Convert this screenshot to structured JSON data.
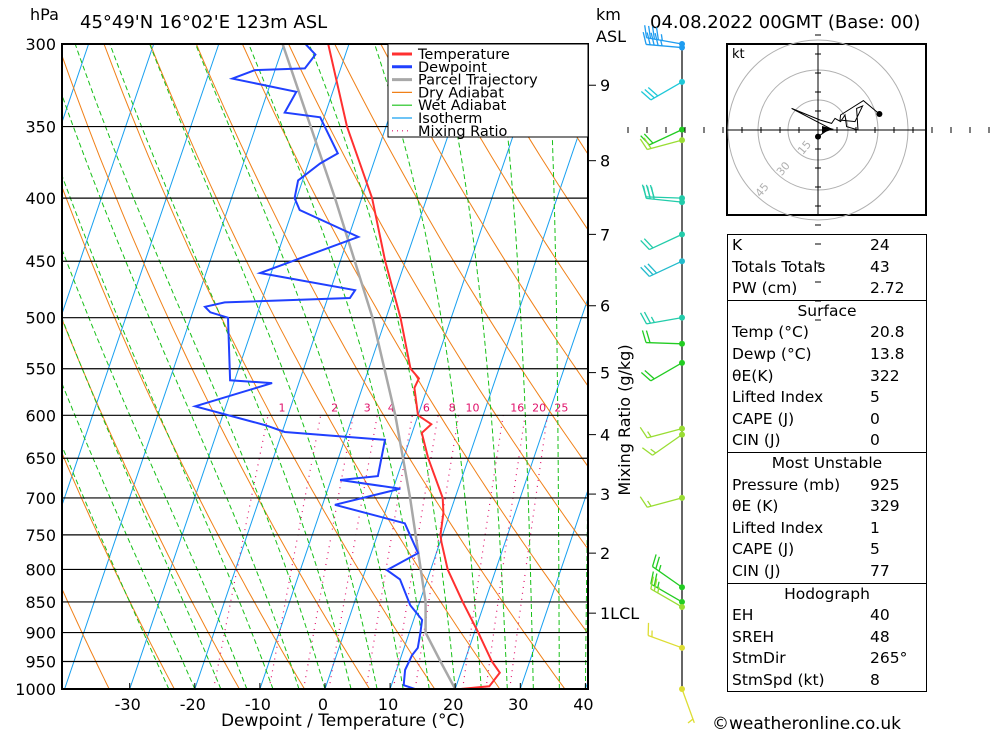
{
  "header": {
    "pressure_unit": "hPa",
    "location": "45°49'N 16°02'E 123m ASL",
    "height_unit_1": "km",
    "height_unit_2": "ASL",
    "datetime": "04.08.2022 00GMT (Base: 00)"
  },
  "footer": {
    "copyright": "©weatheronline.co.uk"
  },
  "chart_data": {
    "type": "skew-t",
    "xlabel": "Dewpoint / Temperature (°C)",
    "ylabel": "hPa",
    "right_label": "Mixing Ratio (g/kg)",
    "pressure_ticks": [
      300,
      350,
      400,
      450,
      500,
      550,
      600,
      650,
      700,
      750,
      800,
      850,
      900,
      950,
      1000
    ],
    "temperature_ticks": [
      -30,
      -20,
      -10,
      0,
      10,
      20,
      30,
      40
    ],
    "ylim_hpa": [
      1000,
      300
    ],
    "xlim_c_at_1000": [
      -40,
      40
    ],
    "legend": {
      "placement": "top-right",
      "items": [
        {
          "label": "Temperature",
          "color": "#ff3030",
          "style": "solid-thick"
        },
        {
          "label": "Dewpoint",
          "color": "#2040ff",
          "style": "solid-thick"
        },
        {
          "label": "Parcel Trajectory",
          "color": "#a8a8a8",
          "style": "solid-thick"
        },
        {
          "label": "Dry Adiabat",
          "color": "#f08018",
          "style": "solid"
        },
        {
          "label": "Wet Adiabat",
          "color": "#18c018",
          "style": "solid"
        },
        {
          "label": "Isotherm",
          "color": "#18a0f0",
          "style": "solid"
        },
        {
          "label": "Mixing Ratio",
          "color": "#e0106a",
          "style": "dotted"
        }
      ]
    },
    "height_scale_km": [
      {
        "label": "9",
        "p": 324
      },
      {
        "label": "8",
        "p": 373
      },
      {
        "label": "7",
        "p": 428
      },
      {
        "label": "6",
        "p": 489
      },
      {
        "label": "5",
        "p": 554
      },
      {
        "label": "4",
        "p": 622
      },
      {
        "label": "3",
        "p": 695
      },
      {
        "label": "2",
        "p": 776
      },
      {
        "label": "1LCL",
        "p": 868
      }
    ],
    "mixing_ratio_labels": [
      "1",
      "2",
      "3",
      "4",
      "6",
      "8",
      "10",
      "16",
      "20",
      "25"
    ],
    "mixing_ratio_values": [
      1,
      2,
      3,
      4,
      6,
      8,
      10,
      16,
      20,
      25
    ],
    "temperature": [
      [
        1000,
        20.8
      ],
      [
        995,
        25.1
      ],
      [
        970,
        26.0
      ],
      [
        950,
        24.2
      ],
      [
        900,
        20.6
      ],
      [
        850,
        16.6
      ],
      [
        800,
        12.6
      ],
      [
        760,
        10.2
      ],
      [
        750,
        9.7
      ],
      [
        720,
        9.0
      ],
      [
        700,
        8.1
      ],
      [
        650,
        3.8
      ],
      [
        620,
        1.5
      ],
      [
        610,
        2.5
      ],
      [
        600,
        0.0
      ],
      [
        570,
        -2.0
      ],
      [
        560,
        -1.8
      ],
      [
        550,
        -3.6
      ],
      [
        500,
        -7.8
      ],
      [
        450,
        -13.1
      ],
      [
        400,
        -18.4
      ],
      [
        350,
        -26.0
      ],
      [
        300,
        -33.2
      ]
    ],
    "dewpoint": [
      [
        1000,
        13.8
      ],
      [
        993,
        11.9
      ],
      [
        965,
        11.3
      ],
      [
        939,
        11.6
      ],
      [
        926,
        12.1
      ],
      [
        900,
        11.7
      ],
      [
        879,
        11.3
      ],
      [
        855,
        8.7
      ],
      [
        815,
        5.8
      ],
      [
        801,
        3.3
      ],
      [
        776,
        7.2
      ],
      [
        734,
        3.6
      ],
      [
        709,
        -8.1
      ],
      [
        688,
        1.1
      ],
      [
        677,
        -8.6
      ],
      [
        672,
        -3.0
      ],
      [
        628,
        -3.8
      ],
      [
        619,
        -19.6
      ],
      [
        611,
        -23.0
      ],
      [
        590,
        -34.7
      ],
      [
        565,
        -24.1
      ],
      [
        562,
        -30.7
      ],
      [
        500,
        -34.3
      ],
      [
        495,
        -37.3
      ],
      [
        490,
        -38.4
      ],
      [
        486,
        -35.6
      ],
      [
        482,
        -16.6
      ],
      [
        475,
        -16.2
      ],
      [
        460,
        -31.7
      ],
      [
        430,
        -18.5
      ],
      [
        409,
        -28.9
      ],
      [
        400,
        -30.3
      ],
      [
        387,
        -30.7
      ],
      [
        375,
        -28.2
      ],
      [
        368,
        -26.0
      ],
      [
        344,
        -30.6
      ],
      [
        341,
        -36.3
      ],
      [
        328,
        -35.6
      ],
      [
        320,
        -46.1
      ],
      [
        315,
        -43.1
      ],
      [
        314,
        -35.5
      ],
      [
        306,
        -34.6
      ],
      [
        300,
        -36.7
      ]
    ],
    "parcel": [
      [
        1000,
        20.0
      ],
      [
        950,
        16.3
      ],
      [
        900,
        12.5
      ],
      [
        850,
        10.9
      ],
      [
        700,
        3.1
      ],
      [
        600,
        -3.5
      ],
      [
        500,
        -12.1
      ],
      [
        400,
        -24.1
      ],
      [
        300,
        -40.2
      ]
    ],
    "winds": [
      {
        "p": 300,
        "dir": 280,
        "spd": 45,
        "color": "#1e9cf0"
      },
      {
        "p": 302,
        "dir": 275,
        "spd": 45,
        "color": "#1e9cf0"
      },
      {
        "p": 322,
        "dir": 240,
        "spd": 30,
        "color": "#1ec8d8"
      },
      {
        "p": 352,
        "dir": 245,
        "spd": 20,
        "color": "#22cc22"
      },
      {
        "p": 359,
        "dir": 255,
        "spd": 20,
        "color": "#99dd33"
      },
      {
        "p": 400,
        "dir": 272,
        "spd": 30,
        "color": "#22ccaa"
      },
      {
        "p": 403,
        "dir": 276,
        "spd": 30,
        "color": "#22ccaa"
      },
      {
        "p": 428,
        "dir": 245,
        "spd": 20,
        "color": "#22ccaa"
      },
      {
        "p": 450,
        "dir": 245,
        "spd": 30,
        "color": "#22bbcc"
      },
      {
        "p": 500,
        "dir": 260,
        "spd": 25,
        "color": "#22ccaa"
      },
      {
        "p": 525,
        "dir": 272,
        "spd": 20,
        "color": "#22cc22"
      },
      {
        "p": 544,
        "dir": 240,
        "spd": 20,
        "color": "#22cc22"
      },
      {
        "p": 615,
        "dir": 255,
        "spd": 15,
        "color": "#99dd33"
      },
      {
        "p": 622,
        "dir": 235,
        "spd": 15,
        "color": "#99dd33"
      },
      {
        "p": 700,
        "dir": 255,
        "spd": 15,
        "color": "#99dd33"
      },
      {
        "p": 827,
        "dir": 305,
        "spd": 25,
        "color": "#22cc22"
      },
      {
        "p": 850,
        "dir": 300,
        "spd": 25,
        "color": "#22cc22"
      },
      {
        "p": 858,
        "dir": 300,
        "spd": 25,
        "color": "#99dd33"
      },
      {
        "p": 926,
        "dir": 290,
        "spd": 15,
        "color": "#dddd33"
      },
      {
        "p": 1000,
        "dir": 160,
        "spd": 5,
        "color": "#dddd33"
      }
    ]
  },
  "hodograph": {
    "unit": "kt",
    "rings": [
      15,
      30,
      45
    ],
    "ring_labels": [
      "15",
      "30",
      "45"
    ],
    "uv_path": [
      [
        0,
        -3.3
      ],
      [
        6,
        0.8
      ],
      [
        -13.2,
        10.8
      ],
      [
        1,
        5
      ],
      [
        6.8,
        3.3
      ],
      [
        8.5,
        5.8
      ],
      [
        11.3,
        4.2
      ],
      [
        13.5,
        7.5
      ],
      [
        14.3,
        1.7
      ],
      [
        20,
        0
      ],
      [
        19.3,
        10.8
      ],
      [
        22.3,
        12
      ],
      [
        18.5,
        4.2
      ],
      [
        11,
        5
      ],
      [
        11.3,
        7.5
      ],
      [
        22.7,
        14.7
      ],
      [
        30.7,
        8
      ]
    ]
  },
  "indices": {
    "general": [
      {
        "label": "K",
        "value": "24"
      },
      {
        "label": "Totals Totals",
        "value": "43"
      },
      {
        "label": "PW (cm)",
        "value": "2.72"
      }
    ],
    "surface": {
      "title": "Surface",
      "rows": [
        {
          "label": "Temp (°C)",
          "value": "20.8"
        },
        {
          "label": "Dewp (°C)",
          "value": "13.8"
        },
        {
          "label": "θE(K)",
          "value": "322"
        },
        {
          "label": "Lifted Index",
          "value": "5"
        },
        {
          "label": "CAPE (J)",
          "value": "0"
        },
        {
          "label": "CIN (J)",
          "value": "0"
        }
      ]
    },
    "most_unstable": {
      "title": "Most Unstable",
      "rows": [
        {
          "label": "Pressure (mb)",
          "value": "925"
        },
        {
          "label": "θE (K)",
          "value": "329"
        },
        {
          "label": "Lifted Index",
          "value": "1"
        },
        {
          "label": "CAPE (J)",
          "value": "5"
        },
        {
          "label": "CIN (J)",
          "value": "77"
        }
      ]
    },
    "hodograph": {
      "title": "Hodograph",
      "rows": [
        {
          "label": "EH",
          "value": "40"
        },
        {
          "label": "SREH",
          "value": "48"
        },
        {
          "label": "StmDir",
          "value": "265°"
        },
        {
          "label": "StmSpd (kt)",
          "value": "8"
        }
      ]
    }
  }
}
